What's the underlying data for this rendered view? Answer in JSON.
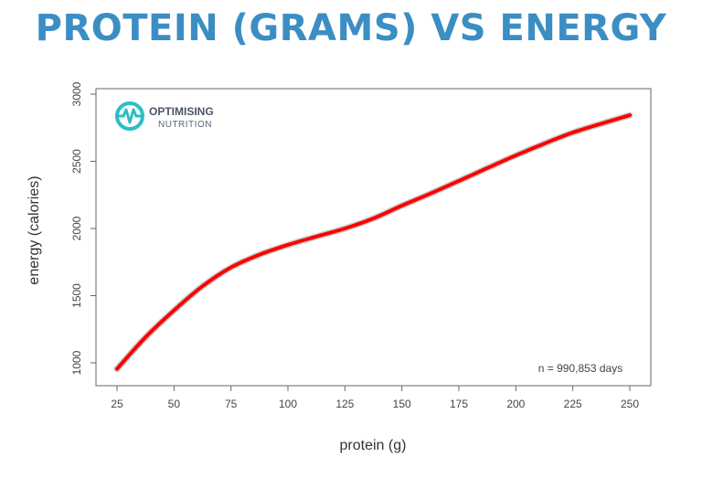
{
  "title": "PROTEIN (GRAMS) VS ENERGY",
  "logo": {
    "line1": "OPTIMISING",
    "line2": "NUTRITION",
    "color": "#2bbfc4"
  },
  "chart_data": {
    "type": "line",
    "title": "PROTEIN (GRAMS) VS ENERGY",
    "xlabel": "protein (g)",
    "ylabel": "energy (calories)",
    "xlim": [
      20,
      258
    ],
    "ylim": [
      860,
      3040
    ],
    "xticks": [
      25,
      50,
      75,
      100,
      125,
      150,
      175,
      200,
      225,
      250
    ],
    "yticks": [
      1000,
      1500,
      2000,
      2500,
      3000
    ],
    "annotation": "n = 990,853 days",
    "grid": false,
    "series": [
      {
        "color": "#ff0000",
        "x": [
          25,
          37.5,
          50,
          62.5,
          75,
          87.5,
          100,
          112.5,
          125,
          137.5,
          150,
          162.5,
          175,
          187.5,
          200,
          212.5,
          225,
          237.5,
          250
        ],
        "y": [
          955,
          1190,
          1390,
          1570,
          1710,
          1805,
          1878,
          1940,
          2000,
          2075,
          2170,
          2260,
          2354,
          2450,
          2544,
          2632,
          2714,
          2780,
          2843
        ]
      }
    ]
  }
}
